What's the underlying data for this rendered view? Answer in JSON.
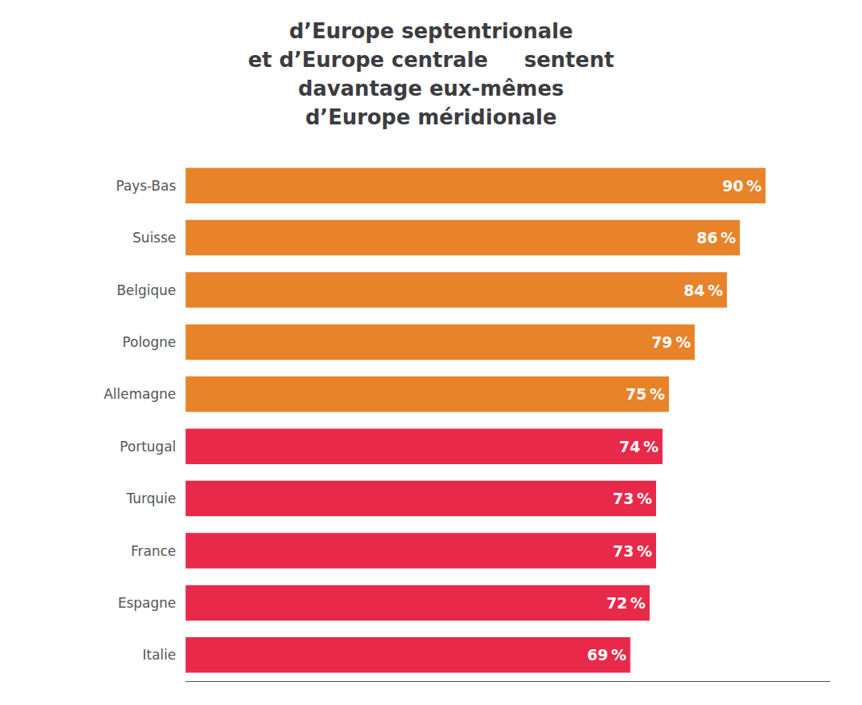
{
  "chart_data": {
    "type": "bar",
    "orientation": "horizontal",
    "title": "d’Europe septentrionale\net d’Europe centrale     sentent\ndavantage eux-mêmes\nd’Europe méridionale",
    "categories": [
      "Pays-Bas",
      "Suisse",
      "Belgique",
      "Pologne",
      "Allemagne",
      "Portugal",
      "Turquie",
      "France",
      "Espagne",
      "Italie"
    ],
    "values": [
      90,
      86,
      84,
      79,
      75,
      74,
      73,
      73,
      72,
      69
    ],
    "value_labels": [
      "90 %",
      "86 %",
      "84 %",
      "79 %",
      "75 %",
      "74 %",
      "73 %",
      "73 %",
      "72 %",
      "69 %"
    ],
    "colors": [
      "#E8832A",
      "#E8832A",
      "#E8832A",
      "#E8832A",
      "#E8832A",
      "#E8294A",
      "#E8294A",
      "#E8294A",
      "#E8294A",
      "#E8294A"
    ],
    "data_labels": true,
    "xlim": [
      0,
      100
    ],
    "xticks": [],
    "tick_labels": "y",
    "grid": false
  }
}
